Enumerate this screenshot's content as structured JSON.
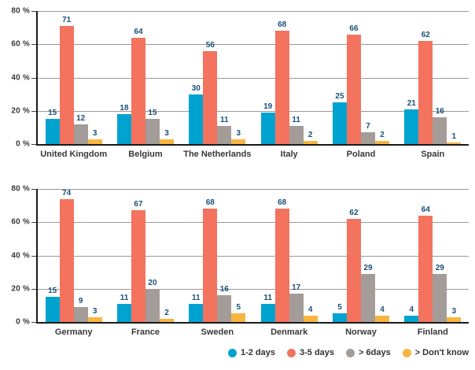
{
  "colors": {
    "series_blue": "#00a3cf",
    "series_red": "#f3735e",
    "series_gray": "#a49c99",
    "series_yellow": "#f8b640",
    "value_label": "#1a5077",
    "axis_text": "#383838",
    "gridline": "#9a9a9a",
    "axis_line": "#1a1a1a"
  },
  "legend": {
    "items": [
      {
        "label": "1-2 days",
        "color": "#00a3cf"
      },
      {
        "label": "3-5 days",
        "color": "#f3735e"
      },
      {
        "label": "> 6days",
        "color": "#a49c99"
      },
      {
        "label": "> Don't know",
        "color": "#f8b640"
      }
    ]
  },
  "chart_data": [
    {
      "type": "bar",
      "title": "",
      "xlabel": "",
      "ylabel": "",
      "ylim": [
        0,
        80
      ],
      "grid": true,
      "legend_position": "bottom-right",
      "yticks": [
        {
          "label": "0 %",
          "value": 0
        },
        {
          "label": "20 %",
          "value": 20
        },
        {
          "label": "40 %",
          "value": 40
        },
        {
          "label": "60 %",
          "value": 60
        },
        {
          "label": "80 %",
          "value": 80
        }
      ],
      "categories": [
        "United Kingdom",
        "Belgium",
        "The Netherlands",
        "Italy",
        "Poland",
        "Spain"
      ],
      "series": [
        {
          "name": "1-2 days",
          "color": "#00a3cf",
          "values": [
            15,
            18,
            30,
            19,
            25,
            21
          ]
        },
        {
          "name": "3-5 days",
          "color": "#f3735e",
          "values": [
            71,
            64,
            56,
            68,
            66,
            62
          ]
        },
        {
          "name": "> 6days",
          "color": "#a49c99",
          "values": [
            12,
            15,
            11,
            11,
            7,
            16
          ]
        },
        {
          "name": "> Don't know",
          "color": "#f8b640",
          "values": [
            3,
            3,
            3,
            2,
            2,
            1
          ]
        }
      ]
    },
    {
      "type": "bar",
      "title": "",
      "xlabel": "",
      "ylabel": "",
      "ylim": [
        0,
        80
      ],
      "grid": true,
      "legend_position": "bottom-right",
      "yticks": [
        {
          "label": "0 %",
          "value": 0
        },
        {
          "label": "20 %",
          "value": 20
        },
        {
          "label": "40 %",
          "value": 40
        },
        {
          "label": "60 %",
          "value": 60
        },
        {
          "label": "80 %",
          "value": 80
        }
      ],
      "categories": [
        "Germany",
        "France",
        "Sweden",
        "Denmark",
        "Norway",
        "Finland"
      ],
      "series": [
        {
          "name": "1-2 days",
          "color": "#00a3cf",
          "values": [
            15,
            11,
            11,
            11,
            5,
            4
          ]
        },
        {
          "name": "3-5 days",
          "color": "#f3735e",
          "values": [
            74,
            67,
            68,
            68,
            62,
            64
          ]
        },
        {
          "name": "> 6days",
          "color": "#a49c99",
          "values": [
            9,
            20,
            16,
            17,
            29,
            29
          ]
        },
        {
          "name": "> Don't know",
          "color": "#f8b640",
          "values": [
            3,
            2,
            5,
            4,
            4,
            3
          ]
        }
      ]
    }
  ]
}
